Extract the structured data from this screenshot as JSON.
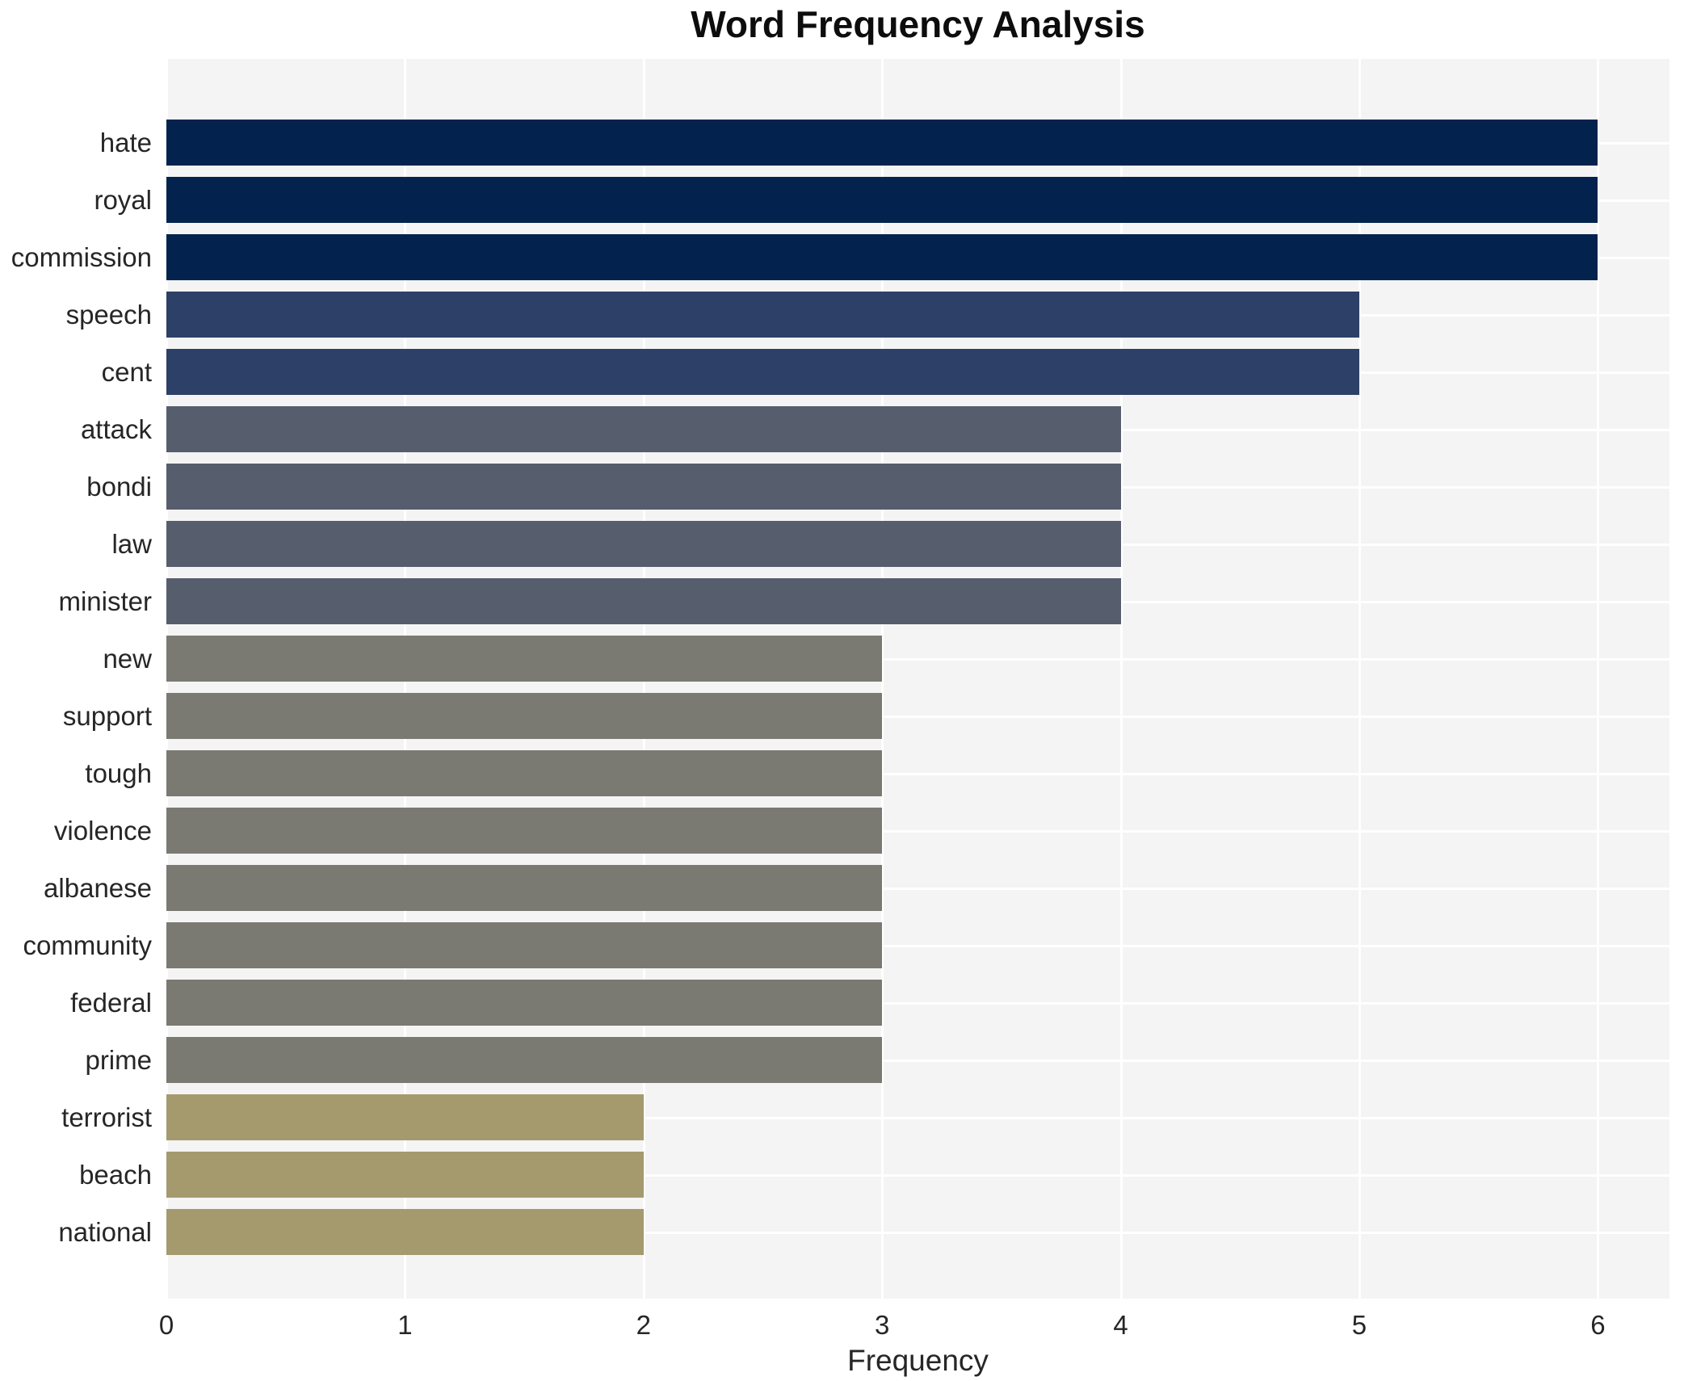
{
  "chart_data": {
    "type": "bar",
    "orientation": "horizontal",
    "title": "Word Frequency Analysis",
    "xlabel": "Frequency",
    "ylabel": "",
    "categories": [
      "hate",
      "royal",
      "commission",
      "speech",
      "cent",
      "attack",
      "bondi",
      "law",
      "minister",
      "new",
      "support",
      "tough",
      "violence",
      "albanese",
      "community",
      "federal",
      "prime",
      "terrorist",
      "beach",
      "national"
    ],
    "values": [
      6,
      6,
      6,
      5,
      5,
      4,
      4,
      4,
      4,
      3,
      3,
      3,
      3,
      3,
      3,
      3,
      3,
      2,
      2,
      2
    ],
    "bar_colors": [
      "#03234e",
      "#03234e",
      "#03234e",
      "#2d4068",
      "#2d4068",
      "#565d6d",
      "#565d6d",
      "#565d6d",
      "#565d6d",
      "#7a7972",
      "#7a7972",
      "#7a7972",
      "#7a7972",
      "#7a7972",
      "#7a7972",
      "#7a7972",
      "#7a7972",
      "#a49a6e",
      "#a49a6e",
      "#a49a6e"
    ],
    "x_ticks": [
      0,
      1,
      2,
      3,
      4,
      5,
      6
    ],
    "xlim": [
      0,
      6.3
    ],
    "grid": true,
    "legend": false,
    "plot_bg_color": "#f5f4f4",
    "grid_color": "#ffffff",
    "tick_text_color": "#262626",
    "title_color": "#0d0d0d"
  }
}
